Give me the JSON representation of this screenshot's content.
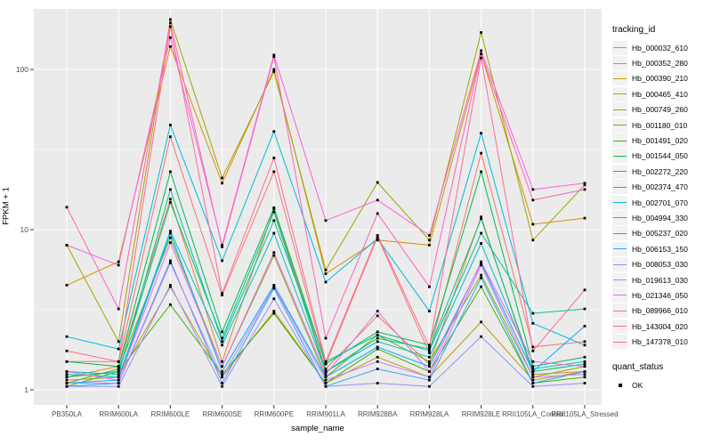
{
  "legend": {
    "tracking_title": "tracking_id",
    "quant_title": "quant_status",
    "quant_value": "OK"
  },
  "colors": {
    "panel_bg": "#EBEBEB",
    "grid": "#FFFFFF",
    "tick_text": "#4D4D4D",
    "tick_mark": "#333333",
    "point": "#000000",
    "legend_key_bg": "#F2F2F2"
  },
  "chart_data": {
    "type": "line",
    "title": "",
    "xlabel": "sample_name",
    "ylabel": "FPKM + 1",
    "y_scale": "log10",
    "ylim": [
      1,
      240
    ],
    "y_ticks": [
      1,
      10,
      100
    ],
    "grid": "major-and-minor",
    "legend_position": "right",
    "point_shape": "filled-black-square",
    "categories": [
      "PB350LA",
      "RRIM600LA",
      "RRIM600LE",
      "RRIM600SE",
      "RRIM600PE",
      "RRIM901LA",
      "RRIM928BA",
      "RRIM928LA",
      "RRIM928LE",
      "RRII105LA_Control",
      "RRII105LA_Stressed"
    ],
    "series": [
      {
        "name": "Hb_000032_610",
        "color": "#F8766D",
        "values": [
          1.5,
          1.5,
          38,
          3.9,
          23,
          1.45,
          9.0,
          1.7,
          30,
          1.85,
          2.0
        ]
      },
      {
        "name": "Hb_000352_280",
        "color": "#EA8331",
        "values": [
          1.2,
          1.4,
          15.5,
          1.5,
          13.5,
          1.35,
          2.9,
          1.45,
          12,
          1.25,
          1.3
        ]
      },
      {
        "name": "Hb_000390_210",
        "color": "#D89000",
        "values": [
          4.5,
          6.3,
          139,
          19.5,
          100,
          5.3,
          8.6,
          8.0,
          125,
          10.8,
          11.8
        ]
      },
      {
        "name": "Hb_000465_410",
        "color": "#C09B00",
        "values": [
          1.15,
          1.2,
          4.4,
          1.2,
          3.1,
          1.1,
          1.6,
          1.2,
          2.65,
          1.15,
          1.3
        ]
      },
      {
        "name": "Hb_000749_260",
        "color": "#A3A500",
        "values": [
          8.0,
          2.0,
          205,
          21,
          97,
          5.6,
          19.7,
          8.6,
          170,
          8.6,
          19
        ]
      },
      {
        "name": "Hb_001180_010",
        "color": "#7CAE00",
        "values": [
          1.1,
          1.35,
          8.9,
          1.4,
          6.9,
          1.2,
          2.2,
          1.5,
          5.2,
          1.2,
          1.4
        ]
      },
      {
        "name": "Hb_001491_020",
        "color": "#39B600",
        "values": [
          1.05,
          1.3,
          3.4,
          1.25,
          3.0,
          1.1,
          1.8,
          1.3,
          4.4,
          1.1,
          1.2
        ]
      },
      {
        "name": "Hb_001544_050",
        "color": "#00BB4E",
        "values": [
          1.5,
          1.4,
          23,
          2.3,
          13.7,
          1.45,
          2.3,
          1.9,
          23,
          1.4,
          1.6
        ]
      },
      {
        "name": "Hb_002272_220",
        "color": "#00BF7D",
        "values": [
          1.2,
          1.3,
          14.8,
          2.1,
          12.9,
          1.3,
          2.1,
          1.8,
          11.7,
          1.3,
          1.45
        ]
      },
      {
        "name": "Hb_002374_470",
        "color": "#00C1A3",
        "values": [
          1.3,
          1.25,
          17.8,
          2.0,
          11.4,
          1.5,
          2.2,
          1.75,
          9.5,
          3.0,
          3.2
        ]
      },
      {
        "name": "Hb_002701_070",
        "color": "#00BFC4",
        "values": [
          1.25,
          1.2,
          9.8,
          1.9,
          9.5,
          1.3,
          2.0,
          1.6,
          8.2,
          1.35,
          1.5
        ]
      },
      {
        "name": "Hb_004994_330",
        "color": "#00BAE0",
        "values": [
          2.15,
          1.8,
          45,
          6.4,
          41,
          4.7,
          8.8,
          3.1,
          40,
          2.6,
          1.9
        ]
      },
      {
        "name": "Hb_005237_020",
        "color": "#00B0F6",
        "values": [
          1.1,
          1.15,
          9.5,
          1.3,
          4.5,
          1.2,
          1.85,
          1.4,
          6.2,
          1.3,
          2.5
        ]
      },
      {
        "name": "Hb_006153_150",
        "color": "#35A2FF",
        "values": [
          1.05,
          1.1,
          6.4,
          1.1,
          4.3,
          1.05,
          1.35,
          1.15,
          5.0,
          1.1,
          1.3
        ]
      },
      {
        "name": "Hb_008053_030",
        "color": "#9590FF",
        "values": [
          1.05,
          1.05,
          4.5,
          1.05,
          3.7,
          1.05,
          1.1,
          1.05,
          2.15,
          1.05,
          1.1
        ]
      },
      {
        "name": "Hb_019613_030",
        "color": "#C77CFF",
        "values": [
          1.1,
          1.1,
          6.2,
          1.2,
          4.4,
          1.15,
          1.5,
          1.2,
          6.0,
          1.2,
          1.25
        ]
      },
      {
        "name": "Hb_021346_050",
        "color": "#E76BF3",
        "values": [
          1.3,
          1.15,
          8.3,
          1.4,
          7.2,
          1.25,
          3.1,
          1.3,
          6.3,
          1.5,
          1.4
        ]
      },
      {
        "name": "Hb_089966_010",
        "color": "#FA62DB",
        "values": [
          8.0,
          6.0,
          158,
          8.0,
          123,
          11.4,
          15.3,
          9.2,
          131,
          17.8,
          19.5
        ]
      },
      {
        "name": "Hb_143004_020",
        "color": "#FF62BC",
        "values": [
          13.8,
          3.2,
          195,
          7.8,
          120,
          2.1,
          12.6,
          4.4,
          125,
          15.3,
          17.8
        ]
      },
      {
        "name": "Hb_147378_010",
        "color": "#FF6A98",
        "values": [
          1.75,
          1.5,
          185,
          4.0,
          28,
          1.5,
          9.2,
          1.85,
          118,
          1.75,
          4.2
        ]
      }
    ]
  }
}
